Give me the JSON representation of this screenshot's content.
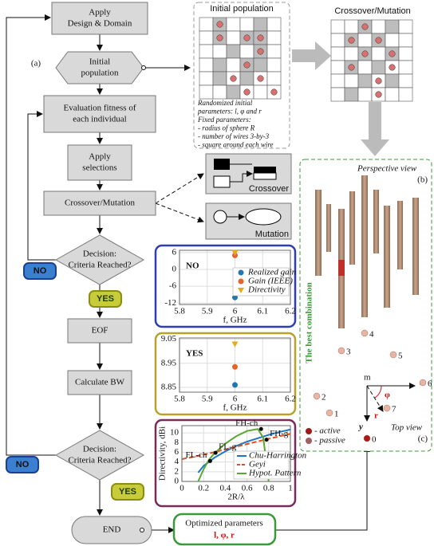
{
  "flow": {
    "label_a": "(a)",
    "nodes": [
      {
        "lines": [
          "Apply",
          "Design & Domain"
        ]
      },
      {
        "lines": [
          "Initial",
          "population"
        ]
      },
      {
        "lines": [
          "Evaluation fitness of",
          "each individual"
        ]
      },
      {
        "lines": [
          "Apply",
          "selections"
        ]
      },
      {
        "lines": [
          "Crossover/Mutation"
        ]
      },
      {
        "lines": [
          "Decision:",
          "Criteria Reached?"
        ]
      },
      {
        "lines": [
          "EOF"
        ]
      },
      {
        "lines": [
          "Calculate BW"
        ]
      },
      {
        "lines": [
          "Decision:",
          "Criteria Reached?"
        ]
      },
      {
        "lines": [
          "END"
        ]
      }
    ],
    "badges": [
      "NO",
      "YES",
      "NO",
      "YES"
    ]
  },
  "population": {
    "title": "Initial population",
    "notes": [
      "Randomized initial",
      "parameters: l, φ and r",
      "Fixed parameters:",
      "- radius of sphere R",
      "- number of wires 3-by-3",
      "- square around each wire"
    ]
  },
  "crossover_title": "Crossover/Mutation",
  "operators": [
    "Crossover",
    "Mutation"
  ],
  "charts": [
    {
      "type": "scatter",
      "title": "NO",
      "frame": "#2f3fb3",
      "xlabel": "f, GHz",
      "xlim": [
        5.8,
        6.2
      ],
      "xticks": [
        5.8,
        5.9,
        6,
        6.1,
        6.2
      ],
      "ylim": [
        -12.5,
        6.8
      ],
      "yticks": [
        -12,
        -6,
        0,
        6
      ],
      "series": [
        {
          "name": "Realized gain",
          "color": "#1f77b4",
          "marker": "circle",
          "x": [
            6
          ],
          "values": [
            -10
          ]
        },
        {
          "name": "Gain (IEEE)",
          "color": "#e8632a",
          "marker": "circle",
          "x": [
            6
          ],
          "values": [
            5
          ]
        },
        {
          "name": "Directivity",
          "color": "#e5a91a",
          "marker": "triangle",
          "x": [
            6
          ],
          "values": [
            6
          ]
        }
      ]
    },
    {
      "type": "scatter",
      "title": "YES",
      "frame": "#b8a22a",
      "xlabel": "f, GHz",
      "xlim": [
        5.8,
        6.2
      ],
      "xticks": [
        5.8,
        5.9,
        6,
        6.1,
        6.2
      ],
      "ylim": [
        8.83,
        9.055
      ],
      "yticks": [
        8.85,
        8.95,
        9.05
      ],
      "series": [
        {
          "name": "Realized gain",
          "color": "#1f77b4",
          "marker": "circle",
          "x": [
            6
          ],
          "values": [
            8.86
          ]
        },
        {
          "name": "Gain (IEEE)",
          "color": "#e8632a",
          "marker": "circle",
          "x": [
            6
          ],
          "values": [
            8.935
          ]
        },
        {
          "name": "Directivity",
          "color": "#e5a91a",
          "marker": "triangle",
          "x": [
            6
          ],
          "values": [
            9.03
          ]
        }
      ]
    },
    {
      "type": "line",
      "frame": "#7a2a5a",
      "xlabel": "2R/λ",
      "ylabel": "Directivity, dBi",
      "xlim": [
        0,
        1
      ],
      "xticks": [
        0,
        0.2,
        0.4,
        0.6,
        0.8,
        1
      ],
      "ylim": [
        0,
        11.5
      ],
      "yticks": [
        0,
        2,
        4,
        6,
        8,
        10
      ],
      "series": [
        {
          "name": "Chu-Harrington",
          "color": "#1f77c4",
          "x": [
            0.15,
            0.2,
            0.3,
            0.4,
            0.5,
            0.6,
            0.7,
            0.8,
            0.9,
            1
          ],
          "values": [
            1.8,
            3.2,
            4.9,
            6.2,
            7.3,
            8.2,
            8.9,
            9.6,
            10.2,
            10.7
          ]
        },
        {
          "name": "Geyi",
          "color": "#e0501e",
          "dash": true,
          "x": [
            0,
            0.2,
            0.4,
            0.6,
            0.8,
            1
          ],
          "values": [
            4.6,
            5.5,
            6.6,
            7.7,
            8.8,
            9.8
          ]
        },
        {
          "name": "Hypot. Pattern",
          "color": "#5aa832",
          "x": [
            0.15,
            0.2,
            0.25,
            0.3,
            0.4,
            0.5,
            0.6,
            0.7,
            0.75,
            0.8
          ],
          "values": [
            0,
            2.5,
            4.5,
            5.8,
            7.8,
            9.3,
            10.4,
            10.8,
            9,
            0
          ]
        }
      ],
      "annotations": [
        {
          "text": "FL-ch",
          "x": 0.26,
          "y": 4.2
        },
        {
          "text": "FL-g",
          "x": 0.31,
          "y": 5.9
        },
        {
          "text": "FH-ch",
          "x": 0.73,
          "y": 10.8
        },
        {
          "text": "FH-g",
          "x": 0.78,
          "y": 8.6
        }
      ]
    }
  ],
  "result": {
    "title": "Optimized parameters",
    "params": "l, φ, r"
  },
  "view": {
    "perspective": "Perspective view",
    "b": "(b)",
    "side": "The best combination",
    "top": "Top view",
    "c": "(c)",
    "x": "x",
    "y": "y",
    "phi": "φ",
    "r": "r",
    "points": [
      "0",
      "1",
      "2",
      "3",
      "4",
      "5",
      "6",
      "7",
      "m"
    ],
    "legend": [
      "- active",
      "- passive"
    ]
  }
}
